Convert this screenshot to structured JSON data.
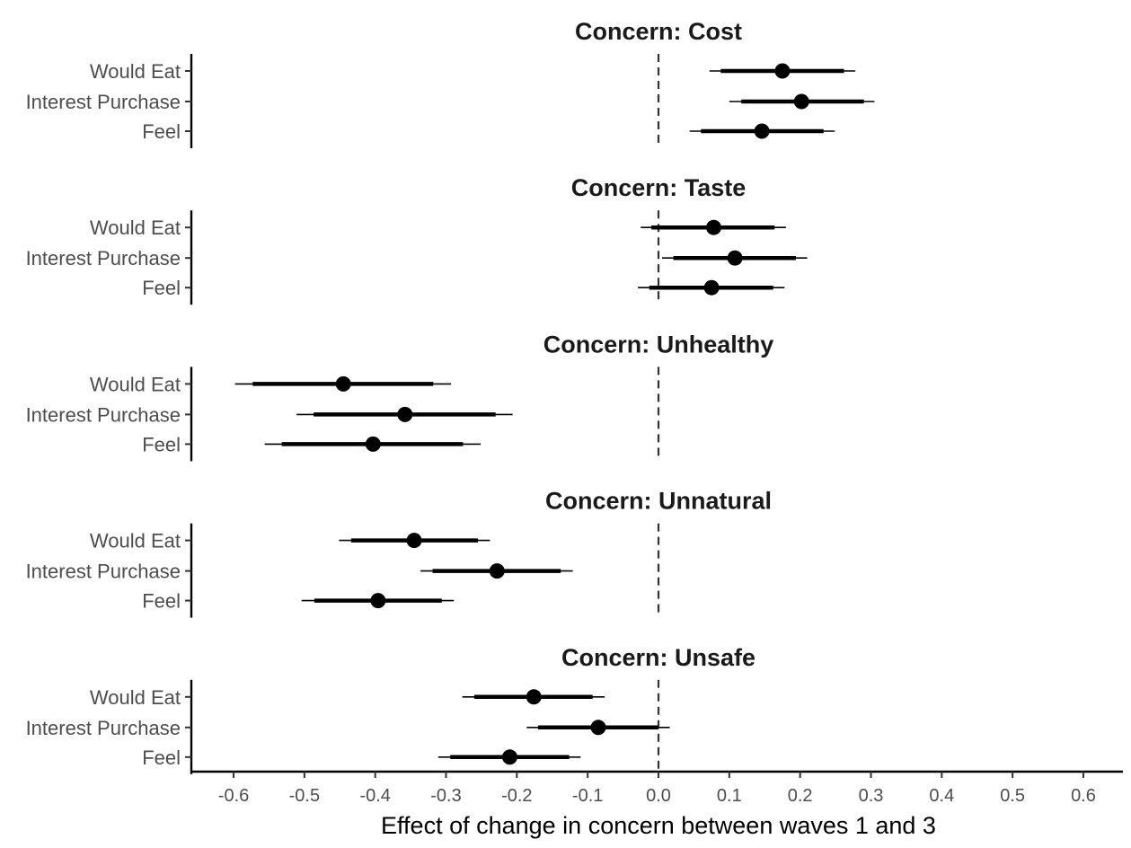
{
  "chart_data": {
    "type": "forest",
    "xlabel": "Effect of change in concern between waves 1 and 3",
    "xlim": [
      -0.66,
      0.66
    ],
    "x_ticks": [
      -0.6,
      -0.5,
      -0.4,
      -0.3,
      -0.2,
      -0.1,
      0.0,
      0.1,
      0.2,
      0.3,
      0.4,
      0.5,
      0.6
    ],
    "x_tick_labels": [
      "-0.6",
      "-0.5",
      "-0.4",
      "-0.3",
      "-0.2",
      "-0.1",
      "0.0",
      "0.1",
      "0.2",
      "0.3",
      "0.4",
      "0.5",
      "0.6"
    ],
    "reference_line": 0.0,
    "grid": false,
    "rows": [
      "Would Eat",
      "Interest Purchase",
      "Feel"
    ],
    "panels": [
      {
        "title": "Concern: Cost",
        "estimates": [
          {
            "label": "Would Eat",
            "est": 0.175,
            "inner": [
              0.088,
              0.262
            ],
            "outer": [
              0.072,
              0.278
            ]
          },
          {
            "label": "Interest Purchase",
            "est": 0.202,
            "inner": [
              0.117,
              0.29
            ],
            "outer": [
              0.1,
              0.305
            ]
          },
          {
            "label": "Feel",
            "est": 0.146,
            "inner": [
              0.06,
              0.233
            ],
            "outer": [
              0.044,
              0.249
            ]
          }
        ]
      },
      {
        "title": "Concern: Taste",
        "estimates": [
          {
            "label": "Would Eat",
            "est": 0.078,
            "inner": [
              -0.01,
              0.164
            ],
            "outer": [
              -0.025,
              0.18
            ]
          },
          {
            "label": "Interest Purchase",
            "est": 0.108,
            "inner": [
              0.021,
              0.194
            ],
            "outer": [
              0.005,
              0.21
            ]
          },
          {
            "label": "Feel",
            "est": 0.075,
            "inner": [
              -0.013,
              0.162
            ],
            "outer": [
              -0.029,
              0.178
            ]
          }
        ]
      },
      {
        "title": "Concern: Unhealthy",
        "estimates": [
          {
            "label": "Would Eat",
            "est": -0.445,
            "inner": [
              -0.573,
              -0.318
            ],
            "outer": [
              -0.598,
              -0.293
            ]
          },
          {
            "label": "Interest Purchase",
            "est": -0.358,
            "inner": [
              -0.487,
              -0.23
            ],
            "outer": [
              -0.511,
              -0.206
            ]
          },
          {
            "label": "Feel",
            "est": -0.403,
            "inner": [
              -0.532,
              -0.276
            ],
            "outer": [
              -0.556,
              -0.251
            ]
          }
        ]
      },
      {
        "title": "Concern: Unnatural",
        "estimates": [
          {
            "label": "Would Eat",
            "est": -0.345,
            "inner": [
              -0.434,
              -0.255
            ],
            "outer": [
              -0.451,
              -0.238
            ]
          },
          {
            "label": "Interest Purchase",
            "est": -0.228,
            "inner": [
              -0.319,
              -0.138
            ],
            "outer": [
              -0.336,
              -0.121
            ]
          },
          {
            "label": "Feel",
            "est": -0.396,
            "inner": [
              -0.486,
              -0.306
            ],
            "outer": [
              -0.504,
              -0.289
            ]
          }
        ]
      },
      {
        "title": "Concern: Unsafe",
        "estimates": [
          {
            "label": "Would Eat",
            "est": -0.176,
            "inner": [
              -0.26,
              -0.093
            ],
            "outer": [
              -0.277,
              -0.076
            ]
          },
          {
            "label": "Interest Purchase",
            "est": -0.085,
            "inner": [
              -0.17,
              0.0
            ],
            "outer": [
              -0.186,
              0.016
            ]
          },
          {
            "label": "Feel",
            "est": -0.21,
            "inner": [
              -0.294,
              -0.126
            ],
            "outer": [
              -0.311,
              -0.11
            ]
          }
        ]
      }
    ]
  }
}
